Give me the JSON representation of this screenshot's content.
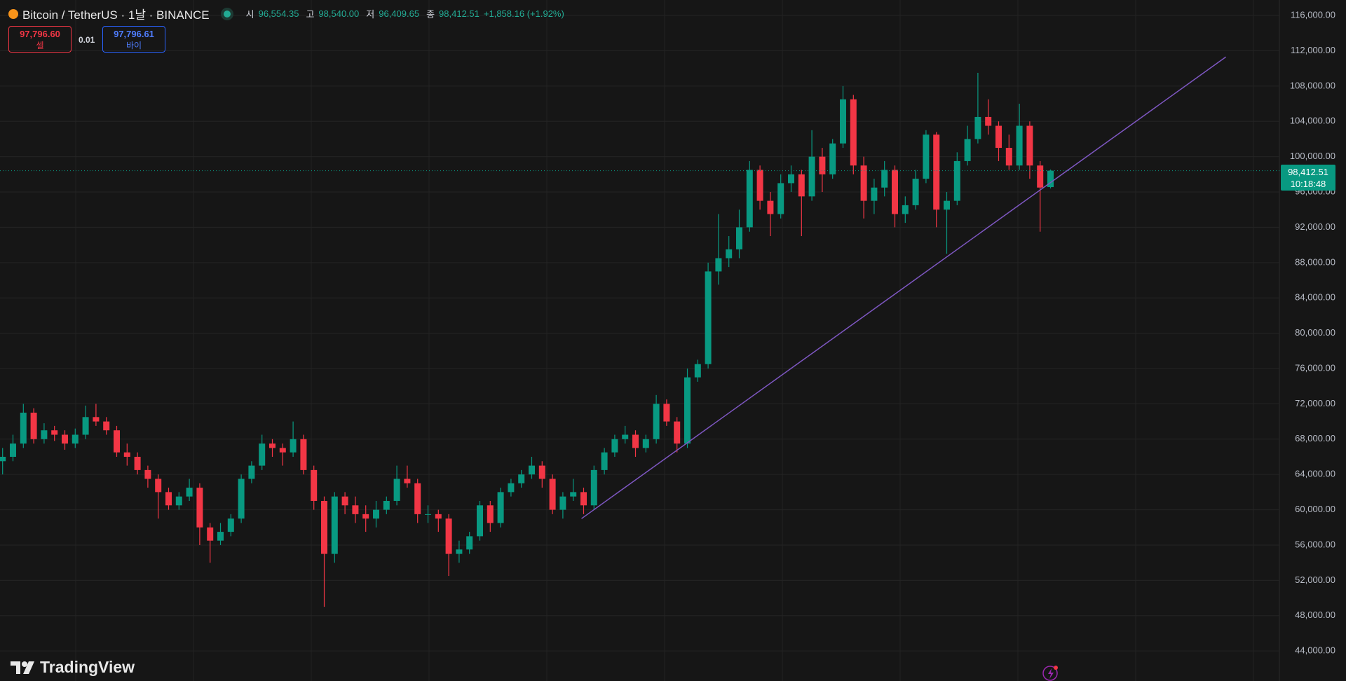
{
  "header": {
    "title": "Bitcoin / TetherUS · 1날 · BINANCE",
    "open_label": "시",
    "open": "96,554.35",
    "high_label": "고",
    "high": "98,540.00",
    "low_label": "저",
    "low": "96,409.65",
    "close_label": "종",
    "close": "98,412.51",
    "change": "+1,858.16 (+1.92%)"
  },
  "trade": {
    "sell_price": "97,796.60",
    "sell_label": "셀",
    "quantity": "0.01",
    "buy_price": "97,796.61",
    "buy_label": "바이"
  },
  "price_tag": {
    "countdown": "10:18:48"
  },
  "logo": "TradingView",
  "chart_data": {
    "type": "candlestick",
    "up_color": "#089981",
    "down_color": "#f23645",
    "grid": true,
    "ylim": [
      40600,
      117750
    ],
    "yticks": [
      {
        "value": 44000,
        "label": "44,000.00"
      },
      {
        "value": 48000,
        "label": "48,000.00"
      },
      {
        "value": 52000,
        "label": "52,000.00"
      },
      {
        "value": 56000,
        "label": "56,000.00"
      },
      {
        "value": 60000,
        "label": "60,000.00"
      },
      {
        "value": 64000,
        "label": "64,000.00"
      },
      {
        "value": 68000,
        "label": "68,000.00"
      },
      {
        "value": 72000,
        "label": "72,000.00"
      },
      {
        "value": 76000,
        "label": "76,000.00"
      },
      {
        "value": 80000,
        "label": "80,000.00"
      },
      {
        "value": 84000,
        "label": "84,000.00"
      },
      {
        "value": 88000,
        "label": "88,000.00"
      },
      {
        "value": 92000,
        "label": "92,000.00"
      },
      {
        "value": 96000,
        "label": "96,000.00"
      },
      {
        "value": 100000,
        "label": "100,000.00"
      },
      {
        "value": 104000,
        "label": "104,000.00"
      },
      {
        "value": 108000,
        "label": "108,000.00"
      },
      {
        "value": 112000,
        "label": "112,000.00"
      },
      {
        "value": 116000,
        "label": "116,000.00"
      }
    ],
    "ohlc": [
      [
        65500,
        67000,
        64000,
        66000
      ],
      [
        66000,
        68500,
        65500,
        67500
      ],
      [
        67500,
        72000,
        67000,
        71000
      ],
      [
        71000,
        71500,
        67500,
        68000
      ],
      [
        68000,
        69800,
        67500,
        69000
      ],
      [
        69000,
        69500,
        67800,
        68500
      ],
      [
        68500,
        69000,
        66800,
        67500
      ],
      [
        67500,
        69200,
        67000,
        68500
      ],
      [
        68500,
        71800,
        68000,
        70500
      ],
      [
        70500,
        72000,
        69500,
        70000
      ],
      [
        70000,
        70500,
        68500,
        69000
      ],
      [
        69000,
        69500,
        66000,
        66500
      ],
      [
        66500,
        67500,
        65000,
        66000
      ],
      [
        66000,
        66500,
        64000,
        64500
      ],
      [
        64500,
        65000,
        62500,
        63500
      ],
      [
        63500,
        64000,
        59000,
        62000
      ],
      [
        62000,
        62500,
        60000,
        60500
      ],
      [
        60500,
        62000,
        60000,
        61500
      ],
      [
        61500,
        63500,
        61000,
        62500
      ],
      [
        62500,
        63000,
        56000,
        58000
      ],
      [
        58000,
        58500,
        54000,
        56500
      ],
      [
        56500,
        58500,
        56000,
        57500
      ],
      [
        57500,
        59500,
        57000,
        59000
      ],
      [
        59000,
        64000,
        58500,
        63500
      ],
      [
        63500,
        65500,
        63000,
        65000
      ],
      [
        65000,
        68500,
        64500,
        67500
      ],
      [
        67500,
        68000,
        66000,
        67000
      ],
      [
        67000,
        67500,
        65000,
        66500
      ],
      [
        66500,
        70000,
        66000,
        68000
      ],
      [
        68000,
        68500,
        64000,
        64500
      ],
      [
        64500,
        65000,
        60000,
        61000
      ],
      [
        61000,
        61500,
        49000,
        55000
      ],
      [
        55000,
        62000,
        54000,
        61500
      ],
      [
        61500,
        62000,
        59500,
        60500
      ],
      [
        60500,
        61500,
        58500,
        59500
      ],
      [
        59500,
        60500,
        57500,
        59000
      ],
      [
        59000,
        61000,
        58000,
        60000
      ],
      [
        60000,
        61500,
        59500,
        61000
      ],
      [
        61000,
        65000,
        60500,
        63500
      ],
      [
        63500,
        65000,
        62500,
        63000
      ],
      [
        63000,
        63500,
        58500,
        59500
      ],
      [
        59500,
        60500,
        58500,
        59500
      ],
      [
        59500,
        60000,
        57500,
        59000
      ],
      [
        59000,
        59500,
        52500,
        55000
      ],
      [
        55000,
        56500,
        54000,
        55500
      ],
      [
        55500,
        57500,
        55000,
        57000
      ],
      [
        57000,
        61000,
        56500,
        60500
      ],
      [
        60500,
        61000,
        57500,
        58500
      ],
      [
        58500,
        62500,
        58000,
        62000
      ],
      [
        62000,
        63500,
        61500,
        63000
      ],
      [
        63000,
        64500,
        62500,
        64000
      ],
      [
        64000,
        66000,
        63500,
        65000
      ],
      [
        65000,
        65500,
        62500,
        63500
      ],
      [
        63500,
        64000,
        59500,
        60000
      ],
      [
        60000,
        62000,
        59000,
        61500
      ],
      [
        61500,
        63500,
        61000,
        62000
      ],
      [
        62000,
        62500,
        59500,
        60500
      ],
      [
        60500,
        65000,
        60000,
        64500
      ],
      [
        64500,
        67000,
        64000,
        66500
      ],
      [
        66500,
        68500,
        66000,
        68000
      ],
      [
        68000,
        69500,
        67500,
        68500
      ],
      [
        68500,
        69000,
        66000,
        67000
      ],
      [
        67000,
        68500,
        66500,
        68000
      ],
      [
        68000,
        73000,
        67500,
        72000
      ],
      [
        72000,
        72500,
        69500,
        70000
      ],
      [
        70000,
        70500,
        66500,
        67500
      ],
      [
        67500,
        76000,
        67000,
        75000
      ],
      [
        75000,
        77000,
        74500,
        76500
      ],
      [
        76500,
        88000,
        76000,
        87000
      ],
      [
        87000,
        93500,
        85500,
        88500
      ],
      [
        88500,
        91000,
        87500,
        89500
      ],
      [
        89500,
        94000,
        88500,
        92000
      ],
      [
        92000,
        99500,
        91500,
        98500
      ],
      [
        98500,
        99000,
        94000,
        95000
      ],
      [
        95000,
        96000,
        91000,
        93500
      ],
      [
        93500,
        98000,
        93000,
        97000
      ],
      [
        97000,
        99000,
        96000,
        98000
      ],
      [
        98000,
        98500,
        91000,
        95500
      ],
      [
        95500,
        103000,
        95000,
        100000
      ],
      [
        100000,
        101000,
        96000,
        98000
      ],
      [
        98000,
        102000,
        97500,
        101500
      ],
      [
        101500,
        108000,
        101000,
        106500
      ],
      [
        106500,
        107000,
        98000,
        99000
      ],
      [
        99000,
        100000,
        93000,
        95000
      ],
      [
        95000,
        97500,
        93500,
        96500
      ],
      [
        96500,
        99500,
        95500,
        98500
      ],
      [
        98500,
        99000,
        92000,
        93500
      ],
      [
        93500,
        95500,
        92500,
        94500
      ],
      [
        94500,
        98500,
        94000,
        97500
      ],
      [
        97500,
        103000,
        97000,
        102500
      ],
      [
        102500,
        102800,
        92000,
        94000
      ],
      [
        94000,
        96000,
        89000,
        95000
      ],
      [
        95000,
        100500,
        94500,
        99500
      ],
      [
        99500,
        103500,
        99000,
        102000
      ],
      [
        102000,
        109500,
        101500,
        104500
      ],
      [
        104500,
        106500,
        102500,
        103500
      ],
      [
        103500,
        104000,
        99500,
        101000
      ],
      [
        101000,
        102500,
        98500,
        99000
      ],
      [
        99000,
        106000,
        98500,
        103500
      ],
      [
        103500,
        104000,
        97500,
        99000
      ],
      [
        99000,
        99500,
        91500,
        96500
      ],
      [
        96554.35,
        98540,
        96409.65,
        98412.51
      ]
    ],
    "trendline": {
      "color": "#7e57c2",
      "x": [
        55.8,
        117.9
      ],
      "y": [
        59000,
        111300
      ]
    }
  }
}
